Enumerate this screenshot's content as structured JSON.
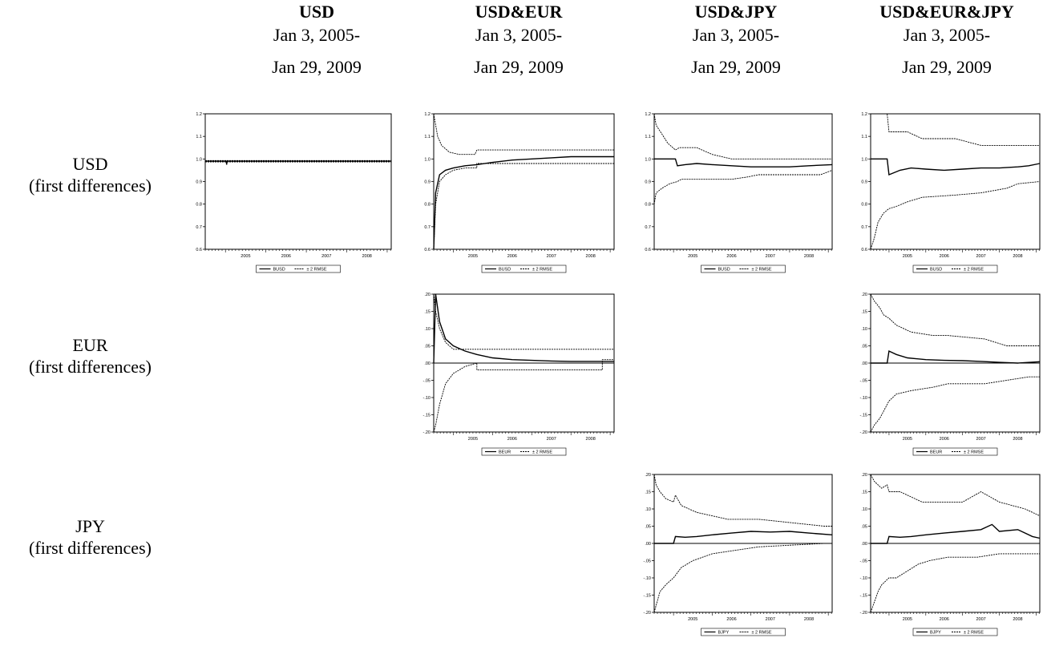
{
  "columns": [
    {
      "title": "USD",
      "line1": "Jan 3, 2005-",
      "line2": "Jan 29, 2009"
    },
    {
      "title": "USD&EUR",
      "line1": "Jan 3, 2005-",
      "line2": "Jan 29, 2009"
    },
    {
      "title": "USD&JPY",
      "line1": "Jan 3, 2005-",
      "line2": "Jan 29, 2009"
    },
    {
      "title": "USD&EUR&JPY",
      "line1": "Jan 3, 2005-",
      "line2": "Jan 29, 2009"
    }
  ],
  "rows": [
    {
      "line1": "USD",
      "line2": "(first differences)"
    },
    {
      "line1": "EUR",
      "line2": "(first differences)"
    },
    {
      "line1": "JPY",
      "line2": "(first differences)"
    }
  ],
  "style": {
    "line_color": "#000000",
    "background": "#ffffff"
  },
  "chart_data": [
    {
      "id": "usd-usd",
      "type": "line",
      "x_ticks": [
        "2005",
        "2006",
        "2007",
        "2008"
      ],
      "xlim": [
        2004.5,
        2009.1
      ],
      "ylim": [
        0.6,
        1.2
      ],
      "y_ticks": [
        "0.6",
        "0.7",
        "0.8",
        "0.9",
        "1.0",
        "1.1",
        "1.2"
      ],
      "legend": [
        "BUSD",
        "± 2 RMSE"
      ],
      "series": [
        {
          "name": "BUSD",
          "style": "solid",
          "x": [
            2004.5,
            2005.02,
            2005.03,
            2005.04,
            2009.1
          ],
          "y": [
            0.99,
            0.99,
            0.975,
            0.99,
            0.99
          ]
        },
        {
          "name": "± 2 RMSE",
          "style": "dashed",
          "x": [
            2004.5,
            2009.1
          ],
          "y": [
            0.993,
            0.993
          ]
        },
        {
          "name": "± 2 RMSE",
          "style": "dashed",
          "x": [
            2004.5,
            2009.1
          ],
          "y": [
            0.987,
            0.987
          ]
        }
      ]
    },
    {
      "id": "usdeur-usd",
      "type": "line",
      "x_ticks": [
        "2005",
        "2006",
        "2007",
        "2008"
      ],
      "xlim": [
        2004.5,
        2009.1
      ],
      "ylim": [
        0.6,
        1.2
      ],
      "y_ticks": [
        "0.6",
        "0.7",
        "0.8",
        "0.9",
        "1.0",
        "1.1",
        "1.2"
      ],
      "legend": [
        "BUSD",
        "± 2 RMSE"
      ],
      "series": [
        {
          "name": "BUSD",
          "style": "solid",
          "x": [
            2004.5,
            2004.55,
            2004.65,
            2004.8,
            2005,
            2005.3,
            2005.6,
            2006,
            2006.5,
            2007,
            2007.5,
            2008,
            2008.5,
            2009.1
          ],
          "y": [
            0.6,
            0.85,
            0.93,
            0.95,
            0.96,
            0.97,
            0.975,
            0.985,
            0.995,
            1.0,
            1.005,
            1.01,
            1.01,
            1.01
          ]
        },
        {
          "name": "± 2 RMSE",
          "style": "dashed",
          "x": [
            2004.5,
            2004.6,
            2004.7,
            2004.9,
            2005.15,
            2005.55,
            2005.6,
            2009.1
          ],
          "y": [
            1.2,
            1.1,
            1.06,
            1.03,
            1.02,
            1.02,
            1.04,
            1.04
          ]
        },
        {
          "name": "± 2 RMSE",
          "style": "dashed",
          "x": [
            2004.5,
            2004.55,
            2004.65,
            2004.8,
            2005.0,
            2005.3,
            2005.6,
            2005.6,
            2009.1
          ],
          "y": [
            0.6,
            0.8,
            0.9,
            0.93,
            0.95,
            0.96,
            0.96,
            0.98,
            0.98
          ]
        }
      ]
    },
    {
      "id": "usdjpy-usd",
      "type": "line",
      "x_ticks": [
        "2005",
        "2006",
        "2007",
        "2008"
      ],
      "xlim": [
        2004.5,
        2009.1
      ],
      "ylim": [
        0.6,
        1.2
      ],
      "y_ticks": [
        "0.6",
        "0.7",
        "0.8",
        "0.9",
        "1.0",
        "1.1",
        "1.2"
      ],
      "legend": [
        "BUSD",
        "± 2 RMSE"
      ],
      "series": [
        {
          "name": "BUSD",
          "style": "solid",
          "x": [
            2004.5,
            2005.05,
            2005.1,
            2005.3,
            2005.6,
            2006,
            2006.5,
            2007,
            2007.5,
            2008,
            2008.5,
            2009.1
          ],
          "y": [
            1.0,
            1.0,
            0.97,
            0.975,
            0.98,
            0.975,
            0.97,
            0.965,
            0.965,
            0.965,
            0.97,
            0.975
          ]
        },
        {
          "name": "± 2 RMSE",
          "style": "dashed",
          "x": [
            2004.5,
            2004.55,
            2004.7,
            2004.85,
            2005.05,
            2005.15,
            2005.6,
            2006.0,
            2006.5,
            2008.7,
            2009.1
          ],
          "y": [
            1.2,
            1.15,
            1.11,
            1.07,
            1.04,
            1.05,
            1.05,
            1.02,
            1.0,
            1.0,
            1.0
          ]
        },
        {
          "name": "± 2 RMSE",
          "style": "dashed",
          "x": [
            2004.5,
            2004.55,
            2004.7,
            2004.9,
            2005.1,
            2005.2,
            2005.5,
            2006.5,
            2006.9,
            2007.2,
            2008.8,
            2009.1
          ],
          "y": [
            0.8,
            0.85,
            0.87,
            0.89,
            0.9,
            0.91,
            0.91,
            0.91,
            0.92,
            0.93,
            0.93,
            0.95
          ]
        }
      ]
    },
    {
      "id": "all-usd",
      "type": "line",
      "x_ticks": [
        "2005",
        "2006",
        "2007",
        "2008"
      ],
      "xlim": [
        2004.5,
        2009.1
      ],
      "ylim": [
        0.6,
        1.2
      ],
      "y_ticks": [
        "0.6",
        "0.7",
        "0.8",
        "0.9",
        "1.0",
        "1.1",
        "1.2"
      ],
      "legend": [
        "BUSD",
        "± 2 RMSE"
      ],
      "series": [
        {
          "name": "BUSD",
          "style": "solid",
          "x": [
            2004.5,
            2004.95,
            2005.0,
            2005.3,
            2005.6,
            2006,
            2006.5,
            2007,
            2007.5,
            2008,
            2008.5,
            2008.8,
            2009.1
          ],
          "y": [
            1.0,
            1.0,
            0.93,
            0.95,
            0.96,
            0.955,
            0.95,
            0.955,
            0.96,
            0.96,
            0.965,
            0.97,
            0.98
          ]
        },
        {
          "name": "± 2 RMSE",
          "style": "dashed",
          "x": [
            2004.5,
            2004.95,
            2005.0,
            2005.5,
            2005.9,
            2006.8,
            2007.5,
            2009.1
          ],
          "y": [
            1.2,
            1.2,
            1.12,
            1.12,
            1.09,
            1.09,
            1.06,
            1.06
          ]
        },
        {
          "name": "± 2 RMSE",
          "style": "dashed",
          "x": [
            2004.5,
            2004.6,
            2004.7,
            2004.85,
            2005.0,
            2005.2,
            2005.5,
            2005.9,
            2006.8,
            2007.5,
            2008.2,
            2008.5,
            2009.1
          ],
          "y": [
            0.6,
            0.65,
            0.72,
            0.76,
            0.78,
            0.79,
            0.81,
            0.83,
            0.84,
            0.85,
            0.87,
            0.89,
            0.9
          ]
        }
      ]
    },
    {
      "id": "usdeur-eur",
      "type": "line",
      "x_ticks": [
        "2005",
        "2006",
        "2007",
        "2008"
      ],
      "xlim": [
        2004.5,
        2009.1
      ],
      "ylim": [
        -0.2,
        0.2
      ],
      "y_ticks": [
        "-.20",
        "-.15",
        "-.10",
        "-.05",
        ".00",
        ".05",
        ".10",
        ".15",
        ".20"
      ],
      "legend": [
        "BEUR",
        "± 2 RMSE"
      ],
      "series": [
        {
          "name": "BEUR",
          "style": "solid",
          "x": [
            2004.5,
            2004.55,
            2004.65,
            2004.8,
            2005,
            2005.3,
            2005.6,
            2006,
            2006.5,
            2007,
            2007.5,
            2008,
            2008.5,
            2009.1
          ],
          "y": [
            0.0,
            0.2,
            0.12,
            0.07,
            0.05,
            0.035,
            0.025,
            0.015,
            0.01,
            0.008,
            0.006,
            0.005,
            0.005,
            0.005
          ]
        },
        {
          "name": "± 2 RMSE",
          "style": "dashed",
          "x": [
            2004.5,
            2004.55,
            2004.65,
            2004.8,
            2005.0,
            2005.3,
            2005.4,
            2009.1
          ],
          "y": [
            0.2,
            0.15,
            0.1,
            0.06,
            0.04,
            0.04,
            0.04,
            0.04
          ]
        },
        {
          "name": "± 2 RMSE",
          "style": "dashed",
          "x": [
            2004.5,
            2004.55,
            2004.65,
            2004.8,
            2005.0,
            2005.3,
            2005.6,
            2005.6,
            2008.8,
            2008.8,
            2009.1
          ],
          "y": [
            -0.2,
            -0.18,
            -0.12,
            -0.06,
            -0.03,
            -0.01,
            0.0,
            -0.02,
            -0.02,
            0.01,
            0.01
          ]
        }
      ]
    },
    {
      "id": "all-eur",
      "type": "line",
      "x_ticks": [
        "2005",
        "2006",
        "2007",
        "2008"
      ],
      "xlim": [
        2004.5,
        2009.1
      ],
      "ylim": [
        -0.2,
        0.2
      ],
      "y_ticks": [
        "-.20",
        "-.15",
        "-.10",
        "-.05",
        ".00",
        ".05",
        ".10",
        ".15",
        ".20"
      ],
      "legend": [
        "BEUR",
        "± 2 RMSE"
      ],
      "series": [
        {
          "name": "BEUR",
          "style": "solid",
          "x": [
            2004.5,
            2004.95,
            2005.0,
            2005.2,
            2005.5,
            2006,
            2006.5,
            2007,
            2007.5,
            2008,
            2008.5,
            2009.1
          ],
          "y": [
            0.0,
            0.0,
            0.035,
            0.025,
            0.015,
            0.01,
            0.008,
            0.007,
            0.005,
            0.002,
            0.0,
            0.004
          ]
        },
        {
          "name": "± 2 RMSE",
          "style": "dashed",
          "x": [
            2004.5,
            2004.6,
            2004.75,
            2004.85,
            2005.0,
            2005.2,
            2005.6,
            2006.2,
            2006.6,
            2007.6,
            2008.2,
            2009.1
          ],
          "y": [
            0.2,
            0.18,
            0.16,
            0.14,
            0.13,
            0.11,
            0.09,
            0.08,
            0.08,
            0.07,
            0.05,
            0.05
          ]
        },
        {
          "name": "± 2 RMSE",
          "style": "dashed",
          "x": [
            2004.5,
            2004.6,
            2004.75,
            2004.85,
            2005.0,
            2005.2,
            2005.6,
            2006.2,
            2006.6,
            2007.6,
            2008.2,
            2008.8,
            2009.1
          ],
          "y": [
            -0.2,
            -0.18,
            -0.16,
            -0.14,
            -0.11,
            -0.09,
            -0.08,
            -0.07,
            -0.06,
            -0.06,
            -0.05,
            -0.04,
            -0.04
          ]
        }
      ]
    },
    {
      "id": "usdjpy-jpy",
      "type": "line",
      "x_ticks": [
        "2005",
        "2006",
        "2007",
        "2008"
      ],
      "xlim": [
        2004.5,
        2009.1
      ],
      "ylim": [
        -0.2,
        0.2
      ],
      "y_ticks": [
        "-.20",
        "-.15",
        "-.10",
        "-.05",
        ".00",
        ".05",
        ".10",
        ".15",
        ".20"
      ],
      "legend": [
        "BJPY",
        "± 2 RMSE"
      ],
      "series": [
        {
          "name": "BJPY",
          "style": "solid",
          "x": [
            2004.5,
            2005.0,
            2005.05,
            2005.3,
            2005.6,
            2006,
            2006.5,
            2007,
            2007.5,
            2008,
            2008.5,
            2009.1
          ],
          "y": [
            0.0,
            0.0,
            0.02,
            0.018,
            0.02,
            0.025,
            0.03,
            0.035,
            0.033,
            0.035,
            0.03,
            0.025
          ]
        },
        {
          "name": "± 2 RMSE",
          "style": "dashed",
          "x": [
            2004.5,
            2004.55,
            2004.65,
            2004.8,
            2005.0,
            2005.05,
            2005.2,
            2005.6,
            2006.0,
            2006.4,
            2007.2,
            2008.9,
            2009.1
          ],
          "y": [
            0.2,
            0.17,
            0.15,
            0.13,
            0.12,
            0.14,
            0.11,
            0.09,
            0.08,
            0.07,
            0.07,
            0.05,
            0.05
          ]
        },
        {
          "name": "± 2 RMSE",
          "style": "dashed",
          "x": [
            2004.5,
            2004.55,
            2004.65,
            2004.8,
            2005.0,
            2005.2,
            2005.5,
            2006.0,
            2006.6,
            2007.2,
            2008.9,
            2009.1
          ],
          "y": [
            -0.2,
            -0.18,
            -0.14,
            -0.12,
            -0.1,
            -0.07,
            -0.05,
            -0.03,
            -0.02,
            -0.01,
            0.0,
            0.0
          ]
        }
      ]
    },
    {
      "id": "all-jpy",
      "type": "line",
      "x_ticks": [
        "2005",
        "2006",
        "2007",
        "2008"
      ],
      "xlim": [
        2004.5,
        2009.1
      ],
      "ylim": [
        -0.2,
        0.2
      ],
      "y_ticks": [
        "-.20",
        "-.15",
        "-.10",
        "-.05",
        ".00",
        ".05",
        ".10",
        ".15",
        ".20"
      ],
      "legend": [
        "BJPY",
        "± 2 RMSE"
      ],
      "series": [
        {
          "name": "BJPY",
          "style": "solid",
          "x": [
            2004.5,
            2004.95,
            2005.0,
            2005.3,
            2005.6,
            2006,
            2006.5,
            2007,
            2007.5,
            2007.8,
            2008,
            2008.5,
            2008.9,
            2009.1
          ],
          "y": [
            0.0,
            0.0,
            0.02,
            0.018,
            0.02,
            0.025,
            0.03,
            0.035,
            0.04,
            0.055,
            0.035,
            0.04,
            0.02,
            0.015
          ]
        },
        {
          "name": "± 2 RMSE",
          "style": "dashed",
          "x": [
            2004.5,
            2004.6,
            2004.8,
            2004.95,
            2005.0,
            2005.3,
            2005.9,
            2007.0,
            2007.5,
            2008.0,
            2008.7,
            2009.1
          ],
          "y": [
            0.2,
            0.18,
            0.16,
            0.17,
            0.15,
            0.15,
            0.12,
            0.12,
            0.15,
            0.12,
            0.1,
            0.08
          ]
        },
        {
          "name": "± 2 RMSE",
          "style": "dashed",
          "x": [
            2004.5,
            2004.6,
            2004.7,
            2004.8,
            2005.0,
            2005.2,
            2005.5,
            2005.8,
            2006.1,
            2006.6,
            2007.4,
            2008.0,
            2008.6,
            2009.1
          ],
          "y": [
            -0.2,
            -0.17,
            -0.14,
            -0.12,
            -0.1,
            -0.1,
            -0.08,
            -0.06,
            -0.05,
            -0.04,
            -0.04,
            -0.03,
            -0.03,
            -0.03
          ]
        }
      ]
    }
  ]
}
